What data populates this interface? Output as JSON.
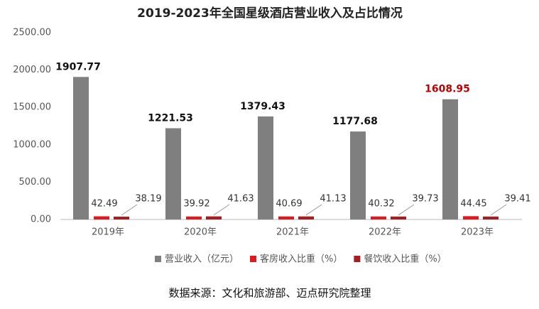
{
  "chart_data": {
    "type": "bar",
    "title": "2019-2023年全国星级酒店营业收入及占比情况",
    "categories": [
      "2019年",
      "2020年",
      "2021年",
      "2022年",
      "2023年"
    ],
    "series": [
      {
        "name": "营业收入（亿元）",
        "color": "#7f7f7f",
        "values": [
          1907.77,
          1221.53,
          1379.43,
          1177.68,
          1608.95
        ],
        "label_colors": [
          "#111111",
          "#111111",
          "#111111",
          "#111111",
          "#c00000"
        ]
      },
      {
        "name": "客房收入比重（%）",
        "color": "#e0191f",
        "values": [
          42.49,
          39.92,
          40.69,
          40.32,
          44.45
        ]
      },
      {
        "name": "餐饮收入比重（%）",
        "color": "#a41e22",
        "values": [
          38.19,
          41.63,
          41.13,
          39.73,
          39.41
        ]
      }
    ],
    "ylim": [
      0,
      2500
    ],
    "yticks": [
      {
        "value": 0,
        "label": "0.00"
      },
      {
        "value": 500,
        "label": "500.00"
      },
      {
        "value": 1000,
        "label": "1000.00"
      },
      {
        "value": 1500,
        "label": "1500.00"
      },
      {
        "value": 2000,
        "label": "2000.00"
      },
      {
        "value": 2500,
        "label": "2500.00"
      }
    ],
    "grid": false,
    "legend": "bottom",
    "source": "数据来源：文化和旅游部、迈点研究院整理"
  }
}
